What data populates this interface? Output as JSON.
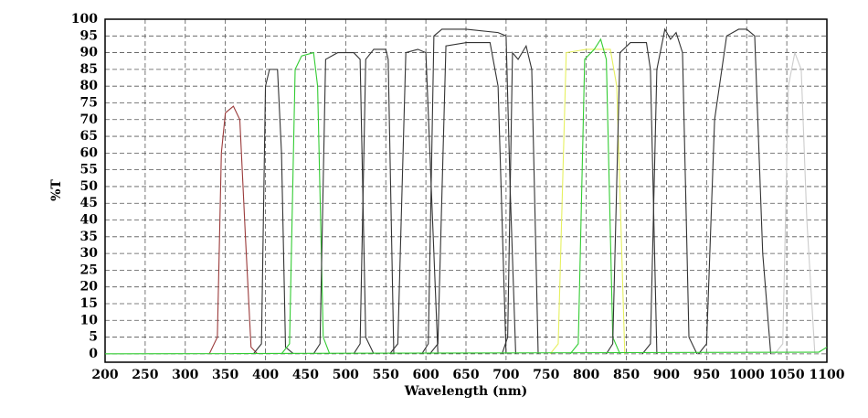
{
  "chart_data": {
    "type": "line",
    "xlabel": "Wavelength (nm)",
    "ylabel": "%T",
    "xlim": [
      200,
      1100
    ],
    "ylim": [
      -2.5,
      100
    ],
    "xticks": [
      200,
      250,
      300,
      350,
      400,
      450,
      500,
      550,
      600,
      650,
      700,
      750,
      800,
      850,
      900,
      950,
      1000,
      1050,
      1100
    ],
    "yticks": [
      0,
      5,
      10,
      15,
      20,
      25,
      30,
      35,
      40,
      45,
      50,
      55,
      60,
      65,
      70,
      75,
      80,
      85,
      90,
      95,
      100
    ],
    "grid": true,
    "series": [
      {
        "color": "#9b3b3b",
        "x": [
          330,
          340,
          345,
          350,
          360,
          368,
          375,
          382,
          390
        ],
        "values": [
          0,
          5,
          60,
          72,
          74,
          70,
          35,
          2,
          0
        ]
      },
      {
        "color": "#333333",
        "x": [
          385,
          395,
          400,
          405,
          415,
          420,
          425,
          435
        ],
        "values": [
          0,
          3,
          80,
          85,
          85,
          60,
          2,
          0
        ]
      },
      {
        "color": "#33cc33",
        "x": [
          420,
          430,
          437,
          445,
          460,
          465,
          472,
          480
        ],
        "values": [
          0,
          3,
          85,
          89,
          90,
          80,
          5,
          0
        ]
      },
      {
        "color": "#333333",
        "x": [
          460,
          468,
          475,
          490,
          500,
          510,
          518,
          525,
          535
        ],
        "values": [
          0,
          3,
          88,
          90,
          90,
          90,
          88,
          5,
          0
        ]
      },
      {
        "color": "#333333",
        "x": [
          510,
          518,
          525,
          535,
          550,
          553,
          560
        ],
        "values": [
          0,
          3,
          88,
          91,
          91,
          88,
          0
        ]
      },
      {
        "color": "#333333",
        "x": [
          555,
          565,
          575,
          590,
          600,
          605,
          615
        ],
        "values": [
          0,
          3,
          90,
          91,
          90,
          60,
          0
        ]
      },
      {
        "color": "#333333",
        "x": [
          595,
          603,
          610,
          620,
          650,
          690,
          700,
          705,
          712
        ],
        "values": [
          0,
          3,
          95,
          97,
          97,
          96,
          95,
          50,
          0
        ]
      },
      {
        "color": "#333333",
        "x": [
          605,
          615,
          625,
          650,
          680,
          690,
          700
        ],
        "values": [
          0,
          3,
          92,
          93,
          93,
          80,
          0
        ]
      },
      {
        "color": "#333333",
        "x": [
          695,
          702,
          708,
          715,
          725,
          732,
          740
        ],
        "values": [
          0,
          5,
          90,
          88,
          92,
          85,
          0
        ]
      },
      {
        "color": "#e6f060",
        "x": [
          755,
          765,
          775,
          800,
          830,
          838,
          848
        ],
        "values": [
          0,
          3,
          90,
          91,
          91,
          80,
          0
        ]
      },
      {
        "color": "#33cc33",
        "x": [
          780,
          790,
          798,
          810,
          818,
          825,
          833,
          842
        ],
        "values": [
          0,
          3,
          88,
          91,
          94,
          88,
          5,
          0
        ]
      },
      {
        "color": "#333333",
        "x": [
          825,
          833,
          842,
          855,
          875,
          880,
          888
        ],
        "values": [
          0,
          3,
          90,
          93,
          93,
          85,
          0
        ]
      },
      {
        "color": "#333333",
        "x": [
          870,
          880,
          888,
          898,
          905,
          912,
          920,
          928,
          938
        ],
        "values": [
          0,
          3,
          85,
          97,
          94,
          96,
          90,
          5,
          0
        ]
      },
      {
        "color": "#333333",
        "x": [
          940,
          950,
          960,
          975,
          990,
          1000,
          1010,
          1020,
          1030
        ],
        "values": [
          0,
          3,
          70,
          95,
          97,
          97,
          95,
          30,
          0
        ]
      },
      {
        "color": "#cccccc",
        "x": [
          1035,
          1045,
          1052,
          1060,
          1068,
          1075,
          1085
        ],
        "values": [
          0,
          3,
          80,
          90,
          85,
          40,
          0
        ]
      },
      {
        "color": "#33cc33",
        "x": [
          200,
          1090,
          1100
        ],
        "values": [
          0,
          0.5,
          2
        ]
      }
    ]
  }
}
